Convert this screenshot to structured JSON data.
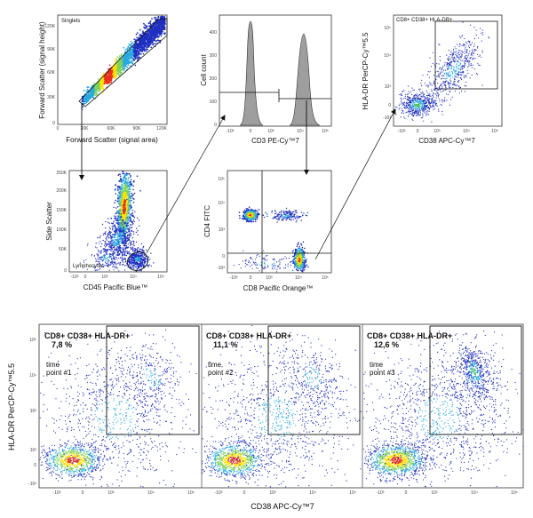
{
  "chart_data": [
    {
      "type": "scatter",
      "panel": "fsc",
      "xlabel": "Forward Scatter (signal area)",
      "ylabel": "Forward Scatter (signal height)",
      "gate_label": "Singlets",
      "x_ticks": [
        "0",
        "30K",
        "60K",
        "90K",
        "120K"
      ],
      "y_ticks": [
        "0",
        "30K",
        "60K",
        "90K",
        "120K"
      ]
    },
    {
      "type": "area",
      "panel": "histogram",
      "xlabel": "CD3 PE-Cy™7",
      "ylabel": "Cell count",
      "x_ticks": [
        "-10³",
        "0",
        "10³",
        "10⁴",
        "10⁵"
      ],
      "y_ticks": [
        "0",
        "100",
        "200",
        "300",
        "400"
      ],
      "ylim": [
        0,
        450
      ]
    },
    {
      "type": "scatter",
      "panel": "cd38-hladr-top",
      "xlabel": "CD38 APC-Cy™7",
      "ylabel": "HLA-DR PerCP-Cy™5.5",
      "gate_label": "CD8+ CD38+ HLA-DR+",
      "x_ticks": [
        "-10³",
        "0",
        "10³",
        "10⁴",
        "10⁵"
      ],
      "y_ticks": [
        "-10³",
        "0",
        "10³",
        "10⁴",
        "10⁵"
      ]
    },
    {
      "type": "scatter",
      "panel": "ssc",
      "xlabel": "CD45 Pacific Blue™",
      "ylabel": "Side Scatter",
      "gate_label": "Lymphocytes",
      "x_ticks": [
        "-10³",
        "0",
        "10³",
        "10⁴",
        "10⁵"
      ],
      "y_ticks": [
        "0",
        "50K",
        "100K",
        "150K",
        "200K",
        "250K"
      ]
    },
    {
      "type": "scatter",
      "panel": "cd4-cd8",
      "xlabel": "CD8 Pacific Orange™",
      "ylabel": "CD4 FITC",
      "x_ticks": [
        "-10³",
        "0",
        "10³",
        "10⁴",
        "10⁵"
      ],
      "y_ticks": [
        "-10³",
        "0",
        "10³",
        "10⁴",
        "10⁵"
      ]
    },
    {
      "type": "scatter",
      "panel": "timepoints",
      "xlabel": "CD38 APC-Cy™7",
      "ylabel": "HLA-DR PerCP-Cy™5.5",
      "x_ticks": [
        "-10³",
        "0",
        "10³",
        "10⁴",
        "10⁵"
      ],
      "y_ticks": [
        "-10³",
        "0",
        "10³",
        "10⁴",
        "10⁵"
      ],
      "gate_label": "CD8+ CD38+ HLA-DR+",
      "subpanels": [
        {
          "percent": "7,8 %",
          "time_label": "time",
          "point_label": "point #1",
          "percent_value": 7.8
        },
        {
          "percent": "11,1 %",
          "time_label": "time",
          "point_label": "point #2",
          "percent_value": 11.1
        },
        {
          "percent": "12,6 %",
          "time_label": "time",
          "point_label": "point #3",
          "percent_value": 12.6
        }
      ]
    }
  ],
  "colors": {
    "density_low": "#1f2fbf",
    "density_mid": "#2aa9e0",
    "density_high": "#ffe000",
    "density_peak": "#e8301c",
    "axis": "#333333",
    "gate": "#111111",
    "histogram_fill": "#9e9e9e"
  }
}
